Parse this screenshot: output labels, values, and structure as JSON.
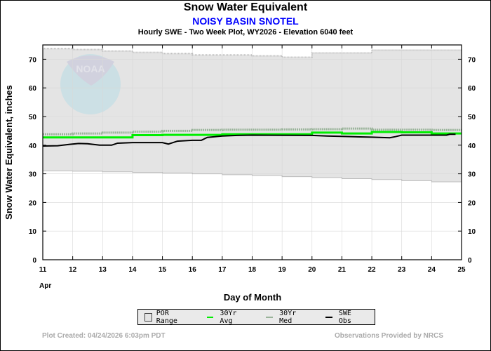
{
  "header": {
    "title": "Snow Water Equivalent",
    "subtitle": "NOISY BASIN SNOTEL",
    "description": "Hourly SWE - Two Week Plot, WY2026 -  Elevation 6040 feet"
  },
  "chart_data": {
    "type": "line",
    "xlabel": "Day of Month",
    "xlabel_month": "Apr",
    "ylabel": "Snow Water Equivalent, inches",
    "xlim": [
      11,
      25
    ],
    "ylim": [
      0,
      75
    ],
    "x_ticks": [
      11,
      12,
      13,
      14,
      15,
      16,
      17,
      18,
      19,
      20,
      21,
      22,
      23,
      24,
      25
    ],
    "y_ticks": [
      0,
      10,
      20,
      30,
      40,
      50,
      60,
      70
    ],
    "grid": true,
    "legend_placement": "bottom",
    "days": [
      11,
      12,
      13,
      14,
      15,
      16,
      17,
      18,
      19,
      20,
      21,
      22,
      23,
      24
    ],
    "series": [
      {
        "name": "POR Range",
        "kind": "band",
        "color": "#e4e4e4",
        "max": [
          73.7,
          73.4,
          72.9,
          72.4,
          72.0,
          71.5,
          71.5,
          71.2,
          70.7,
          72.2,
          72.2,
          73.2,
          73.2,
          73.2
        ],
        "min": [
          31.0,
          30.9,
          30.7,
          30.5,
          30.3,
          30.0,
          29.7,
          29.4,
          29.0,
          28.7,
          28.3,
          28.0,
          27.6,
          27.2
        ]
      },
      {
        "name": "30Yr Avg",
        "kind": "step",
        "color": "#00ee00",
        "values": [
          42.7,
          42.7,
          42.7,
          43.5,
          43.6,
          43.6,
          43.8,
          43.8,
          43.8,
          44.4,
          44.1,
          44.6,
          44.5,
          44.1
        ]
      },
      {
        "name": "30Yr Med",
        "kind": "step",
        "color": "#99b399",
        "values": [
          43.8,
          44.1,
          44.4,
          44.7,
          45.0,
          45.3,
          45.4,
          45.4,
          45.5,
          45.6,
          45.8,
          45.4,
          45.4,
          45.3
        ]
      },
      {
        "name": "SWE Obs",
        "kind": "line",
        "color": "#000000",
        "points": [
          [
            11,
            39.7
          ],
          [
            11.5,
            39.8
          ],
          [
            11.9,
            40.3
          ],
          [
            12.2,
            40.6
          ],
          [
            12.5,
            40.5
          ],
          [
            12.9,
            40.0
          ],
          [
            13.3,
            40.0
          ],
          [
            13.5,
            40.7
          ],
          [
            14,
            40.9
          ],
          [
            15,
            40.9
          ],
          [
            15.2,
            40.4
          ],
          [
            15.5,
            41.4
          ],
          [
            16,
            41.7
          ],
          [
            16.3,
            41.7
          ],
          [
            16.5,
            42.7
          ],
          [
            17,
            43.2
          ],
          [
            17.5,
            43.4
          ],
          [
            18,
            43.5
          ],
          [
            20,
            43.4
          ],
          [
            20.5,
            43.2
          ],
          [
            21.2,
            43.0
          ],
          [
            22,
            42.8
          ],
          [
            22.6,
            42.6
          ],
          [
            22.8,
            43.0
          ],
          [
            23,
            43.5
          ],
          [
            24.5,
            43.5
          ],
          [
            24.6,
            43.8
          ],
          [
            24.8,
            43.8
          ]
        ]
      }
    ]
  },
  "logo": "NOAA",
  "footer": {
    "created": "Plot Created: 04/24/2026 6:03pm PDT",
    "credit": "Observations Provided by NRCS"
  }
}
